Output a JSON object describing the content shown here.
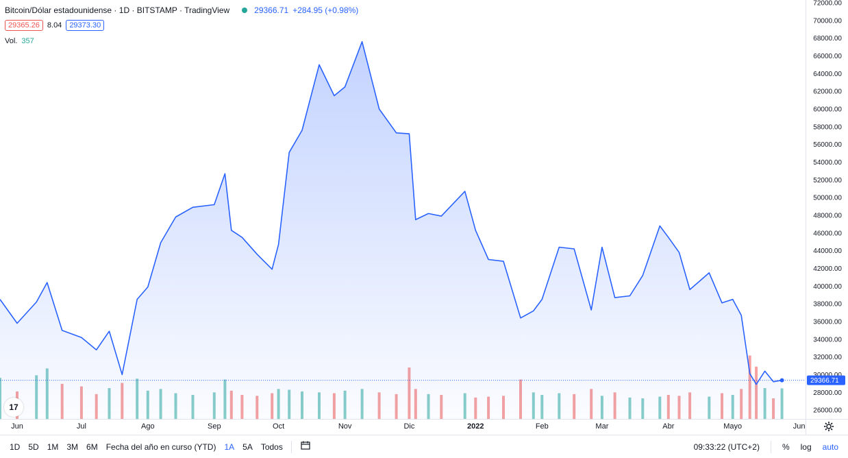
{
  "header": {
    "symbol": "Bitcoin/Dólar estadounidense · 1D · BITSTAMP · TradingView",
    "last": "29366.71",
    "change": "+284.95 (+0.98%)",
    "bid": "29365.26",
    "spread": "8.04",
    "ask": "29373.30",
    "vol_label": "Vol.",
    "vol_value": "357",
    "logo_text": "17"
  },
  "colors": {
    "line": "#2962ff",
    "up": "#26a69a",
    "down": "#ef5350"
  },
  "chart_data": {
    "type": "area",
    "x": [
      "2021-05-24",
      "2021-06-01",
      "2021-06-10",
      "2021-06-15",
      "2021-06-22",
      "2021-07-01",
      "2021-07-08",
      "2021-07-14",
      "2021-07-20",
      "2021-07-27",
      "2021-08-01",
      "2021-08-07",
      "2021-08-14",
      "2021-08-22",
      "2021-09-01",
      "2021-09-06",
      "2021-09-09",
      "2021-09-14",
      "2021-09-21",
      "2021-09-28",
      "2021-10-01",
      "2021-10-06",
      "2021-10-12",
      "2021-10-20",
      "2021-10-27",
      "2021-11-01",
      "2021-11-09",
      "2021-11-17",
      "2021-11-25",
      "2021-12-01",
      "2021-12-04",
      "2021-12-10",
      "2021-12-16",
      "2021-12-27",
      "2022-01-01",
      "2022-01-07",
      "2022-01-14",
      "2022-01-22",
      "2022-01-28",
      "2022-02-01",
      "2022-02-09",
      "2022-02-16",
      "2022-02-24",
      "2022-03-01",
      "2022-03-07",
      "2022-03-14",
      "2022-03-20",
      "2022-03-28",
      "2022-04-01",
      "2022-04-06",
      "2022-04-11",
      "2022-04-20",
      "2022-04-26",
      "2022-05-01",
      "2022-05-05",
      "2022-05-09",
      "2022-05-12",
      "2022-05-16",
      "2022-05-20",
      "2022-05-24"
    ],
    "values": [
      38500,
      35800,
      38200,
      40400,
      35000,
      34200,
      32800,
      34900,
      30000,
      38500,
      39900,
      44900,
      47800,
      48900,
      49200,
      52700,
      46300,
      45500,
      43600,
      41900,
      44700,
      55100,
      57600,
      65000,
      61500,
      62500,
      67600,
      60000,
      57300,
      57200,
      47500,
      48200,
      47900,
      50700,
      46300,
      43000,
      42800,
      36400,
      37200,
      38500,
      44400,
      44200,
      37300,
      44400,
      38700,
      38900,
      41200,
      46800,
      45500,
      43800,
      39600,
      41500,
      38100,
      38500,
      36700,
      30100,
      28900,
      30400,
      29200,
      29367
    ],
    "volume": [
      480,
      320,
      510,
      590,
      410,
      380,
      290,
      360,
      420,
      470,
      330,
      350,
      300,
      280,
      310,
      460,
      330,
      280,
      270,
      300,
      350,
      340,
      320,
      310,
      300,
      330,
      350,
      310,
      290,
      600,
      350,
      290,
      280,
      300,
      250,
      260,
      270,
      460,
      310,
      280,
      300,
      290,
      350,
      270,
      310,
      250,
      240,
      260,
      280,
      270,
      310,
      260,
      300,
      280,
      350,
      740,
      610,
      360,
      240,
      357
    ],
    "ylim": [
      25000,
      72000
    ],
    "y_ticks": [
      "72000.00",
      "70000.00",
      "68000.00",
      "66000.00",
      "64000.00",
      "62000.00",
      "60000.00",
      "58000.00",
      "56000.00",
      "54000.00",
      "52000.00",
      "50000.00",
      "48000.00",
      "46000.00",
      "44000.00",
      "42000.00",
      "40000.00",
      "38000.00",
      "36000.00",
      "34000.00",
      "32000.00",
      "30000.00",
      "28000.00",
      "26000.00"
    ],
    "x_ticks": [
      {
        "label": "Jun",
        "date": "2021-06-01"
      },
      {
        "label": "Jul",
        "date": "2021-07-01"
      },
      {
        "label": "Ago",
        "date": "2021-08-01"
      },
      {
        "label": "Sep",
        "date": "2021-09-01"
      },
      {
        "label": "Oct",
        "date": "2021-10-01"
      },
      {
        "label": "Nov",
        "date": "2021-11-01"
      },
      {
        "label": "Dic",
        "date": "2021-12-01"
      },
      {
        "label": "2022",
        "date": "2022-01-01"
      },
      {
        "label": "Feb",
        "date": "2022-02-01"
      },
      {
        "label": "Mar",
        "date": "2022-03-01"
      },
      {
        "label": "Abr",
        "date": "2022-04-01"
      },
      {
        "label": "Mayo",
        "date": "2022-05-01"
      },
      {
        "label": "Jun",
        "date": "2022-06-01"
      }
    ],
    "last_price_label": "29366.71",
    "grid": false
  },
  "toolbar": {
    "ranges": [
      "1D",
      "5D",
      "1M",
      "3M",
      "6M",
      "Fecha del año en curso (YTD)",
      "1A",
      "5A",
      "Todos"
    ],
    "active_range": "1A",
    "time": "09:33:22 (UTC+2)",
    "percent": "%",
    "log": "log",
    "auto": "auto"
  }
}
